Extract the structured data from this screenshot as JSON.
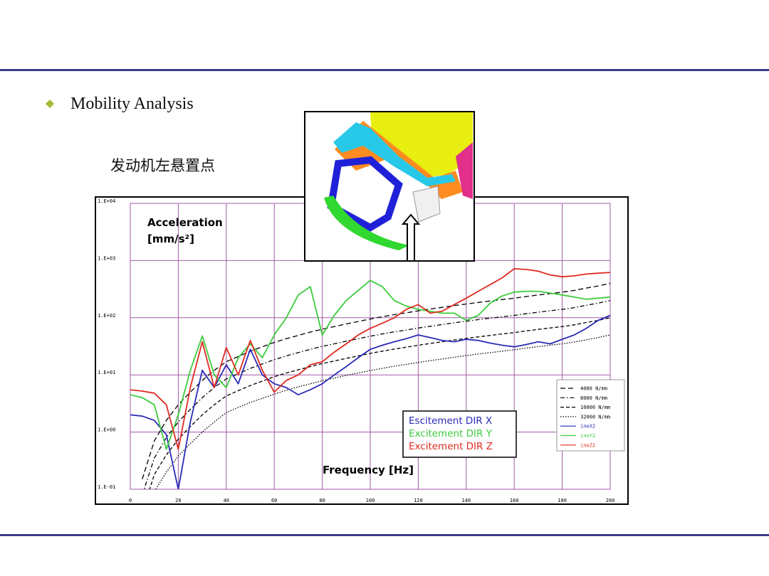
{
  "slide": {
    "bullet": "Mobility Analysis",
    "subtitle": "发动机左悬置点"
  },
  "chart_data": {
    "type": "line",
    "ylabel": [
      "Acceleration",
      "[mm/s²]"
    ],
    "xlabel": "Frequency [Hz]",
    "direction_labels": [
      "Escitement DIR X",
      "Excitement DIR Y",
      "Excitement DIR Z"
    ],
    "x": [
      0,
      5,
      10,
      15,
      20,
      25,
      30,
      35,
      40,
      45,
      50,
      55,
      60,
      65,
      70,
      75,
      80,
      85,
      90,
      95,
      100,
      105,
      110,
      115,
      120,
      125,
      130,
      135,
      140,
      145,
      150,
      155,
      160,
      165,
      170,
      175,
      180,
      185,
      190,
      195,
      200
    ],
    "xlim": [
      0,
      200
    ],
    "xticks": [
      0,
      20,
      40,
      60,
      80,
      100,
      120,
      140,
      160,
      180,
      200
    ],
    "log_y": true,
    "ylim": [
      0.1,
      10000
    ],
    "yticks": [
      {
        "value": 0.1,
        "label": "1.E-01"
      },
      {
        "value": 1,
        "label": "1.E+00"
      },
      {
        "value": 10,
        "label": "1.E+01"
      },
      {
        "value": 100,
        "label": "1.E+02"
      },
      {
        "value": 1000,
        "label": "1.E+03"
      },
      {
        "value": 10000,
        "label": "1.E+04"
      }
    ],
    "grid": true,
    "grid_color": "#a05aa8",
    "legend": "lower right",
    "series": [
      {
        "name": "4000 N/mm",
        "color": "#000000",
        "style": "longdash",
        "values": [
          null,
          0.15,
          0.7,
          1.6,
          3,
          5,
          8,
          12,
          17,
          21,
          26,
          31,
          37,
          43,
          49,
          56,
          63,
          70,
          78,
          86,
          95,
          104,
          113,
          122,
          132,
          142,
          152,
          163,
          174,
          185,
          196,
          208,
          220,
          235,
          250,
          265,
          280,
          300,
          330,
          360,
          400
        ]
      },
      {
        "name": "8000 N/mm",
        "color": "#000000",
        "style": "dashdot",
        "values": [
          null,
          0.08,
          0.35,
          0.8,
          1.5,
          2.5,
          4,
          6,
          8.5,
          10.5,
          13,
          15.5,
          18.5,
          21.5,
          24.5,
          28,
          31.5,
          35,
          39,
          43,
          47.5,
          52,
          56.5,
          61,
          66,
          71,
          76,
          81.5,
          87,
          92.5,
          98,
          104,
          110,
          117.5,
          125,
          132.5,
          140,
          150,
          165,
          180,
          200
        ]
      },
      {
        "name": "16000 N/mm",
        "color": "#000000",
        "style": "dash",
        "values": [
          null,
          0.04,
          0.18,
          0.4,
          0.75,
          1.25,
          2,
          3,
          4.3,
          5.3,
          6.5,
          7.8,
          9.3,
          10.8,
          12.3,
          14,
          15.8,
          17.5,
          19.5,
          21.5,
          23.8,
          26,
          28.3,
          30.5,
          33,
          35.5,
          38,
          40.8,
          43.5,
          46.3,
          49,
          52,
          55,
          58.8,
          62.5,
          66.3,
          70,
          75,
          82.5,
          90,
          100
        ]
      },
      {
        "name": "32000 N/mm",
        "color": "#000000",
        "style": "dot",
        "values": [
          null,
          0.02,
          0.09,
          0.2,
          0.38,
          0.63,
          1,
          1.5,
          2.2,
          2.7,
          3.3,
          3.9,
          4.6,
          5.4,
          6.2,
          7,
          7.9,
          8.8,
          9.8,
          10.8,
          11.9,
          13,
          14.2,
          15.3,
          16.5,
          17.8,
          19,
          20.4,
          21.8,
          23.2,
          24.5,
          26,
          27.5,
          29.4,
          31.3,
          33.2,
          35,
          37.5,
          41,
          45,
          50
        ]
      },
      {
        "name": "ineX2",
        "color": "#2a2ab8",
        "style": "solid",
        "values": [
          2,
          1.9,
          1.6,
          0.9,
          0.1,
          1.5,
          12,
          6,
          15,
          7,
          28,
          10,
          7,
          6,
          4.5,
          5.5,
          7,
          10,
          14,
          20,
          28,
          33,
          38,
          43,
          50,
          45,
          40,
          38,
          42,
          40,
          36,
          33,
          31,
          34,
          38,
          35,
          42,
          50,
          65,
          90,
          110
        ]
      },
      {
        "name": "ineY2",
        "color": "#3ccc3c",
        "style": "solid",
        "values": [
          4.5,
          4,
          3,
          0.5,
          2,
          12,
          48,
          10,
          6,
          20,
          35,
          20,
          50,
          100,
          250,
          350,
          50,
          110,
          200,
          300,
          450,
          350,
          200,
          160,
          140,
          130,
          120,
          120,
          90,
          110,
          180,
          240,
          280,
          290,
          290,
          270,
          250,
          230,
          210,
          220,
          230
        ]
      },
      {
        "name": "ineZ2",
        "color": "#e02a20",
        "style": "solid",
        "values": [
          5.5,
          5.2,
          4.8,
          3,
          0.5,
          6,
          38,
          6,
          30,
          10,
          40,
          12,
          5,
          8,
          10,
          15,
          17,
          25,
          35,
          50,
          65,
          80,
          100,
          140,
          170,
          120,
          130,
          170,
          220,
          290,
          380,
          500,
          720,
          700,
          650,
          560,
          520,
          540,
          580,
          600,
          620
        ]
      }
    ]
  }
}
